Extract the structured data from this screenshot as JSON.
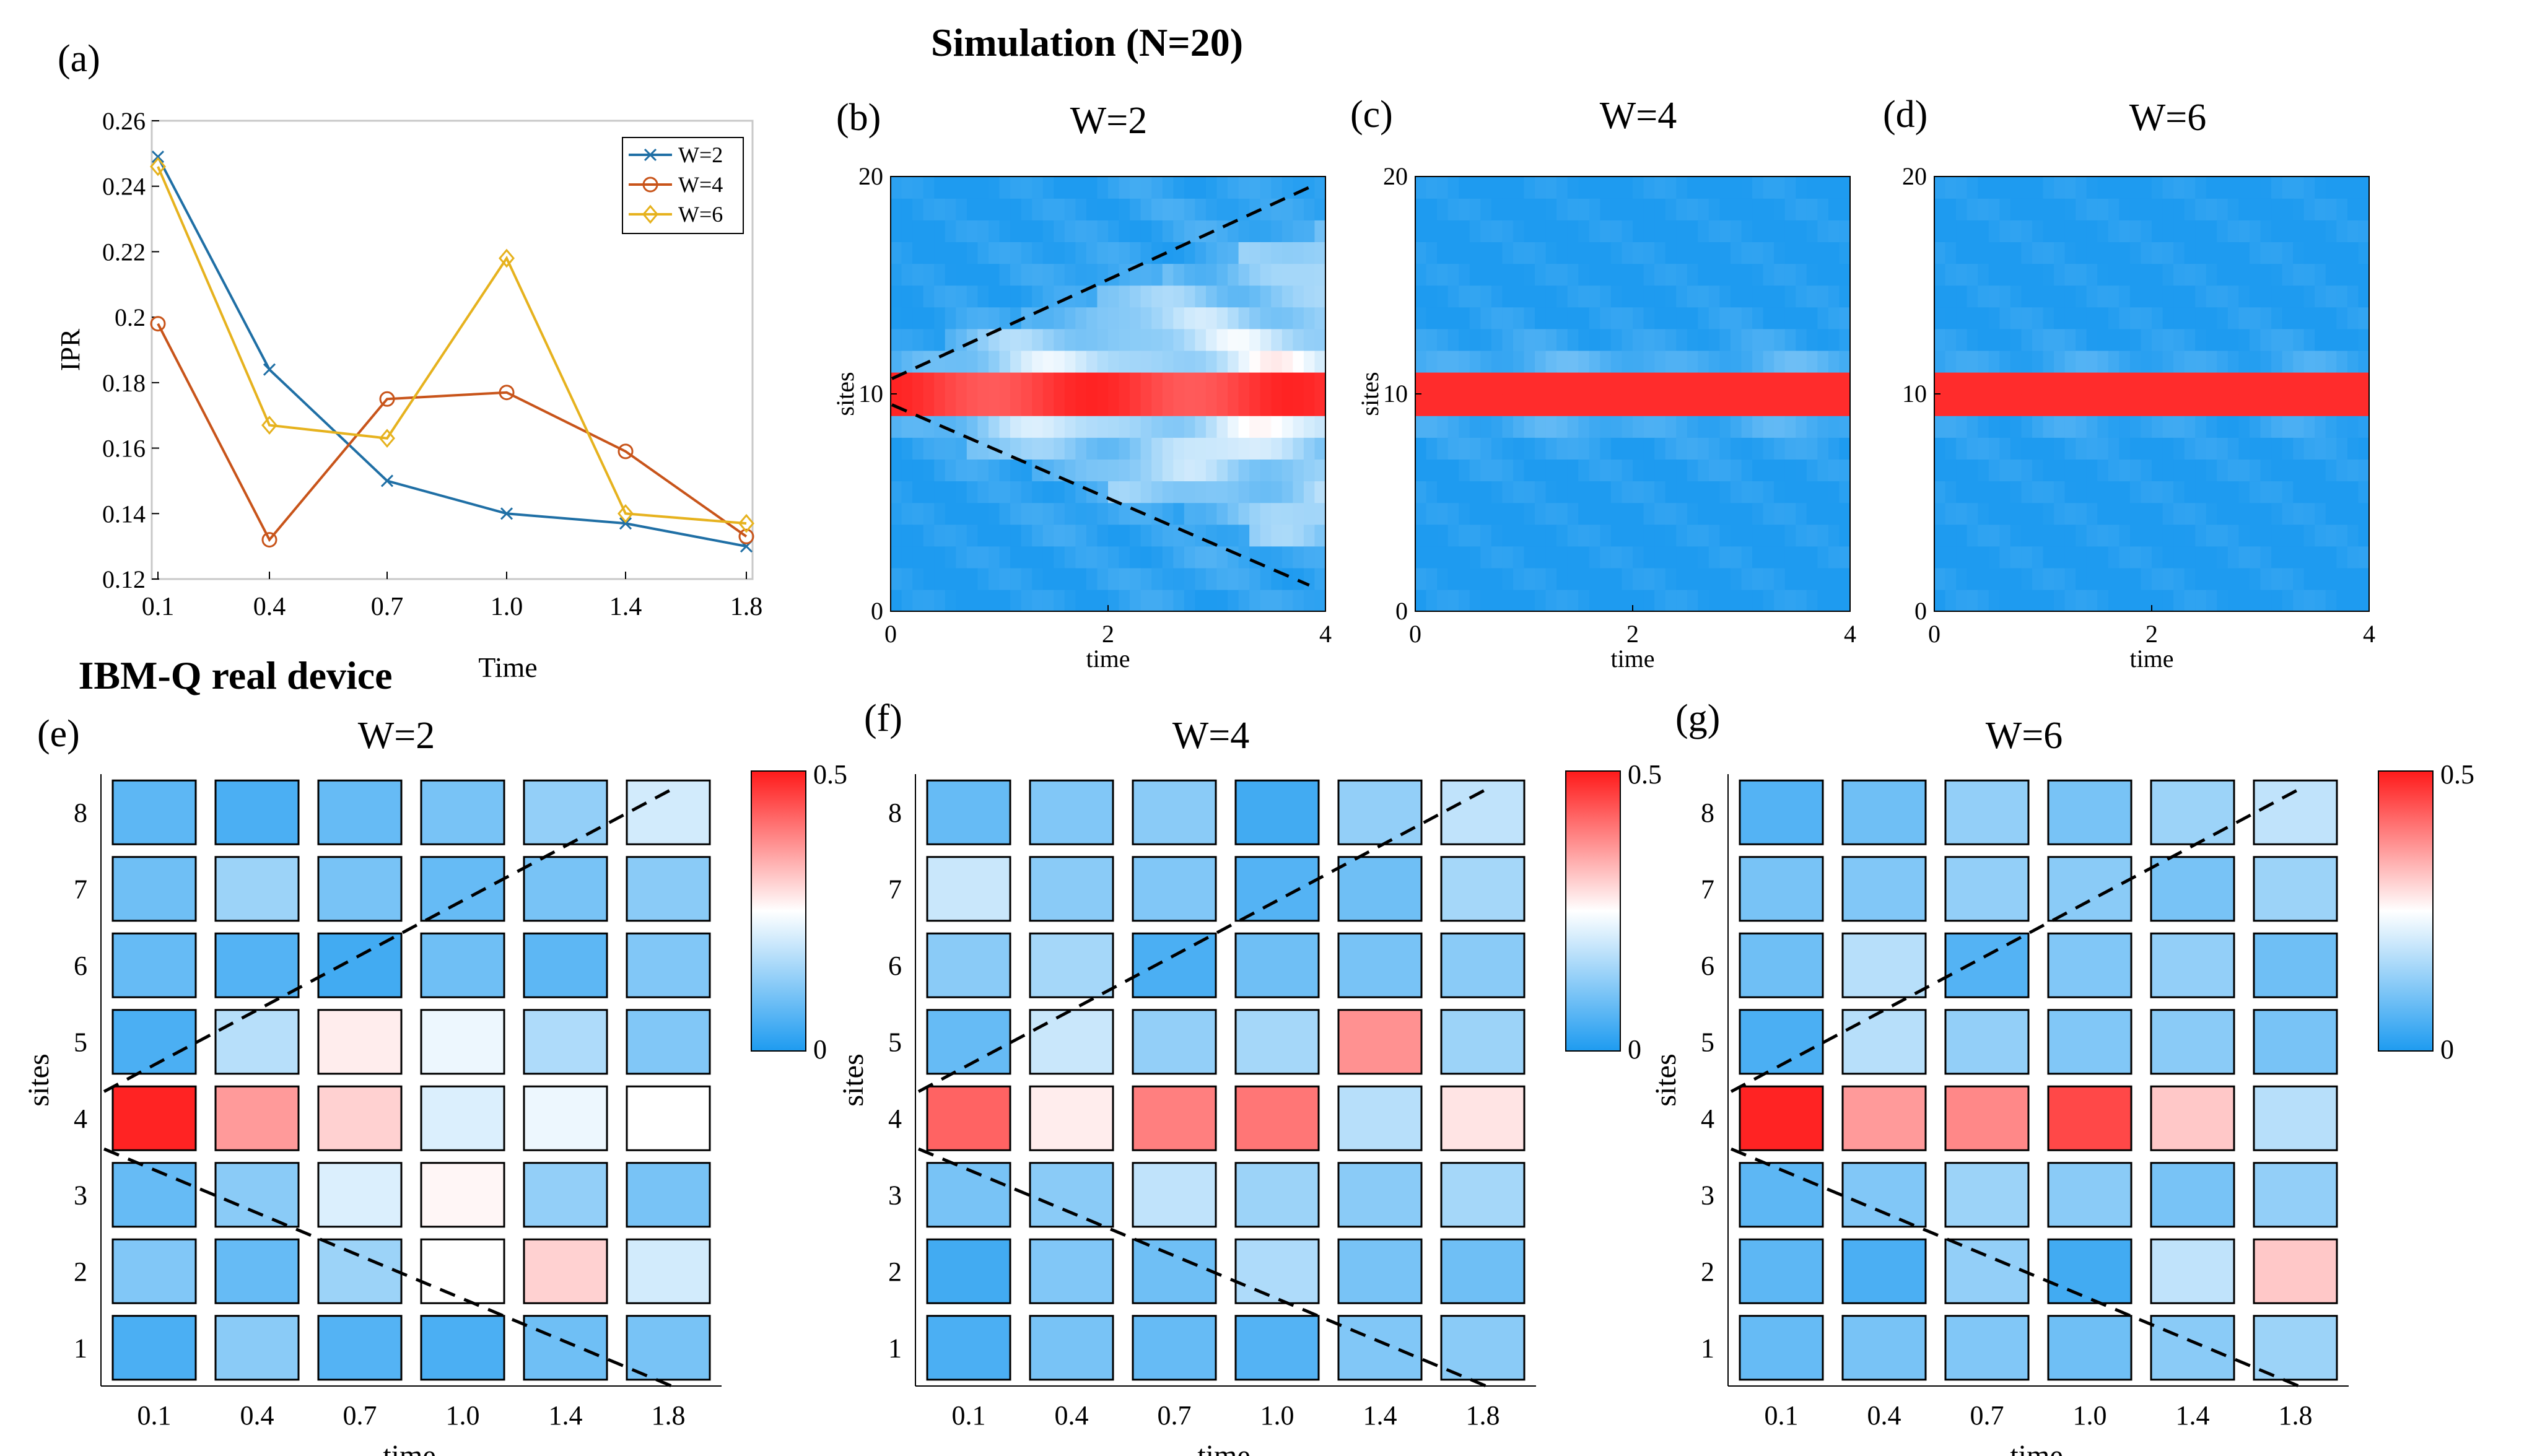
{
  "figure": {
    "title_top": "Simulation (N=20)",
    "title_bottom": "IBM-Q real device"
  },
  "panels": {
    "a": {
      "tag": "(a)"
    },
    "b": {
      "tag": "(b)",
      "title": "W=2"
    },
    "c": {
      "tag": "(c)",
      "title": "W=4"
    },
    "d": {
      "tag": "(d)",
      "title": "W=6"
    },
    "e": {
      "tag": "(e)",
      "title": "W=2"
    },
    "f": {
      "tag": "(f)",
      "title": "W=4"
    },
    "g": {
      "tag": "(g)",
      "title": "W=6"
    }
  },
  "colors": {
    "blue": "#1e9bf0",
    "white": "#ffffff",
    "red": "#ff1a1a",
    "series_W2": "#1f6fa5",
    "series_W4": "#c8541a",
    "series_W6": "#e6b21e"
  },
  "colorbar": {
    "min": 0,
    "max": 0.5,
    "tick_min": "0",
    "tick_max": "0.5"
  },
  "chart_data": [
    {
      "id": "a",
      "type": "line",
      "title": "",
      "xlabel": "Time",
      "ylabel": "IPR",
      "categories": [
        "0.1",
        "0.4",
        "0.7",
        "1.0",
        "1.4",
        "1.8"
      ],
      "ylim": [
        0.12,
        0.26
      ],
      "yticks": [
        0.12,
        0.14,
        0.16,
        0.18,
        0.2,
        0.22,
        0.24,
        0.26
      ],
      "yticklabels": [
        "0.12",
        "0.14",
        "0.16",
        "0.18",
        "0.2",
        "0.22",
        "0.24",
        "0.26"
      ],
      "legend_position": "top-right",
      "series": [
        {
          "name": "W=2",
          "marker": "x",
          "values": [
            0.249,
            0.184,
            0.15,
            0.14,
            0.137,
            0.13
          ]
        },
        {
          "name": "W=4",
          "marker": "o",
          "values": [
            0.198,
            0.132,
            0.175,
            0.177,
            0.159,
            0.133
          ]
        },
        {
          "name": "W=6",
          "marker": "diamond",
          "values": [
            0.246,
            0.167,
            0.163,
            0.218,
            0.14,
            0.137
          ]
        }
      ]
    },
    {
      "id": "b",
      "type": "heatmap",
      "title": "W=2",
      "xlabel": "time",
      "ylabel": "sites",
      "xlim": [
        0,
        4
      ],
      "ylim": [
        0,
        20
      ],
      "xticks": [
        "0",
        "2",
        "4"
      ],
      "yticks": [
        "0",
        "10",
        "20"
      ],
      "disorder_W": 2,
      "light_cone": true,
      "color_range": [
        0,
        0.5
      ]
    },
    {
      "id": "c",
      "type": "heatmap",
      "title": "W=4",
      "xlabel": "time",
      "ylabel": "sites",
      "xlim": [
        0,
        4
      ],
      "ylim": [
        0,
        20
      ],
      "xticks": [
        "0",
        "2",
        "4"
      ],
      "yticks": [
        "0",
        "10",
        "20"
      ],
      "disorder_W": 4,
      "light_cone": false,
      "color_range": [
        0,
        0.5
      ]
    },
    {
      "id": "d",
      "type": "heatmap",
      "title": "W=6",
      "xlabel": "time",
      "ylabel": "",
      "xlim": [
        0,
        4
      ],
      "ylim": [
        0,
        20
      ],
      "xticks": [
        "0",
        "2",
        "4"
      ],
      "yticks": [
        "0",
        "10",
        "20"
      ],
      "disorder_W": 6,
      "light_cone": false,
      "color_range": [
        0,
        0.5
      ]
    },
    {
      "id": "e",
      "type": "heatmap",
      "title": "W=2",
      "xlabel": "time",
      "ylabel": "sites",
      "xticks": [
        "0.1",
        "0.4",
        "0.7",
        "1.0",
        "1.4",
        "1.8"
      ],
      "yticks": [
        "1",
        "2",
        "3",
        "4",
        "5",
        "6",
        "7",
        "8"
      ],
      "color_range": [
        0,
        0.5
      ],
      "values_by_site": [
        [
          0.05,
          0.12,
          0.06,
          0.05,
          0.09,
          0.1
        ],
        [
          0.11,
          0.08,
          0.14,
          0.25,
          0.3,
          0.2
        ],
        [
          0.08,
          0.12,
          0.21,
          0.26,
          0.13,
          0.1
        ],
        [
          0.49,
          0.36,
          0.3,
          0.21,
          0.23,
          0.25
        ],
        [
          0.05,
          0.17,
          0.27,
          0.23,
          0.16,
          0.11
        ],
        [
          0.08,
          0.06,
          0.04,
          0.09,
          0.07,
          0.11
        ],
        [
          0.09,
          0.14,
          0.1,
          0.08,
          0.1,
          0.12
        ],
        [
          0.07,
          0.05,
          0.08,
          0.1,
          0.13,
          0.2
        ]
      ]
    },
    {
      "id": "f",
      "type": "heatmap",
      "title": "W=4",
      "xlabel": "time",
      "ylabel": "sites",
      "xticks": [
        "0.1",
        "0.4",
        "0.7",
        "1.0",
        "1.4",
        "1.8"
      ],
      "yticks": [
        "1",
        "2",
        "3",
        "4",
        "5",
        "6",
        "7",
        "8"
      ],
      "color_range": [
        0,
        0.5
      ],
      "values_by_site": [
        [
          0.05,
          0.1,
          0.08,
          0.06,
          0.11,
          0.12
        ],
        [
          0.04,
          0.11,
          0.09,
          0.16,
          0.1,
          0.09
        ],
        [
          0.1,
          0.12,
          0.18,
          0.14,
          0.12,
          0.15
        ],
        [
          0.42,
          0.27,
          0.39,
          0.4,
          0.17,
          0.28
        ],
        [
          0.08,
          0.19,
          0.13,
          0.15,
          0.37,
          0.14
        ],
        [
          0.12,
          0.15,
          0.05,
          0.09,
          0.1,
          0.12
        ],
        [
          0.19,
          0.12,
          0.11,
          0.06,
          0.09,
          0.15
        ],
        [
          0.08,
          0.11,
          0.12,
          0.04,
          0.13,
          0.18
        ]
      ]
    },
    {
      "id": "g",
      "type": "heatmap",
      "title": "W=6",
      "xlabel": "time",
      "ylabel": "sites",
      "xticks": [
        "0.1",
        "0.4",
        "0.7",
        "1.0",
        "1.4",
        "1.8"
      ],
      "yticks": [
        "1",
        "2",
        "3",
        "4",
        "5",
        "6",
        "7",
        "8"
      ],
      "color_range": [
        0,
        0.5
      ],
      "values_by_site": [
        [
          0.08,
          0.1,
          0.11,
          0.09,
          0.12,
          0.14
        ],
        [
          0.07,
          0.05,
          0.13,
          0.04,
          0.18,
          0.31
        ],
        [
          0.07,
          0.11,
          0.14,
          0.12,
          0.1,
          0.13
        ],
        [
          0.49,
          0.36,
          0.38,
          0.45,
          0.31,
          0.17
        ],
        [
          0.05,
          0.17,
          0.13,
          0.11,
          0.12,
          0.1
        ],
        [
          0.09,
          0.17,
          0.06,
          0.11,
          0.13,
          0.09
        ],
        [
          0.1,
          0.11,
          0.13,
          0.12,
          0.1,
          0.14
        ],
        [
          0.06,
          0.09,
          0.13,
          0.1,
          0.14,
          0.18
        ]
      ]
    }
  ]
}
